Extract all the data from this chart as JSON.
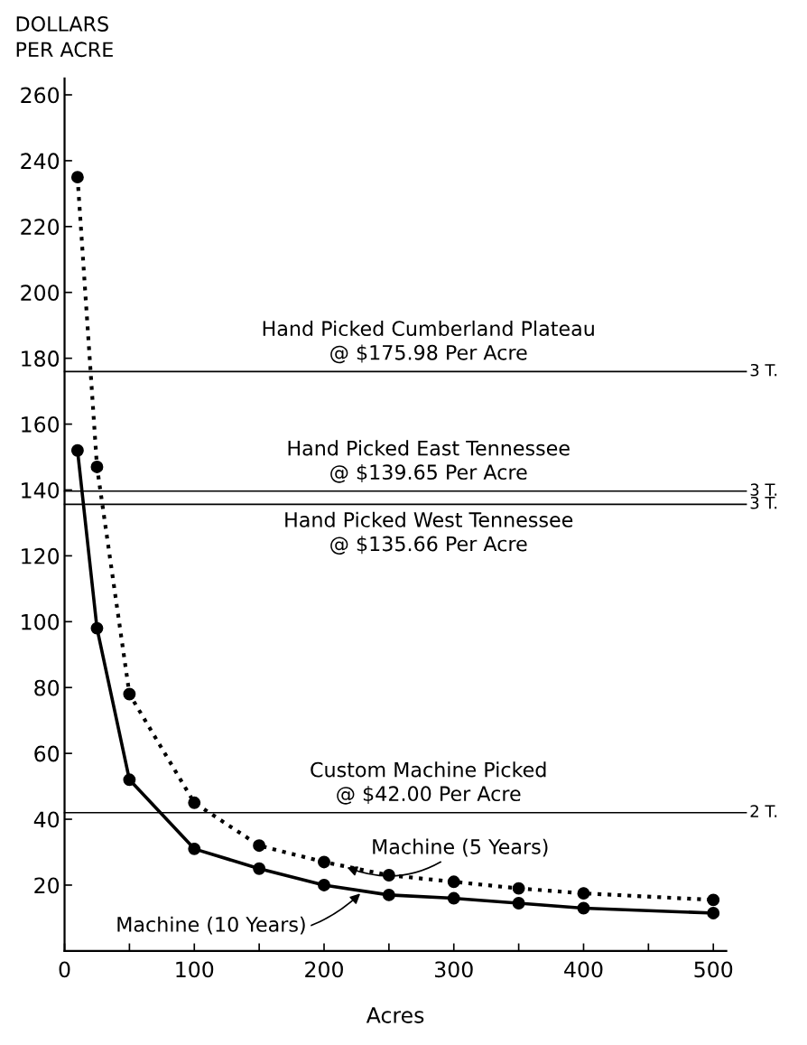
{
  "chart_data": {
    "type": "line",
    "xlabel": "Acres",
    "ylabel": "DOLLARS\nPER ACRE",
    "xlim": [
      0,
      510
    ],
    "ylim": [
      0,
      265
    ],
    "xticks": [
      0,
      {
        "value": 50,
        "label": null
      },
      100,
      {
        "value": 150,
        "label": null
      },
      200,
      {
        "value": 250,
        "label": null
      },
      300,
      {
        "value": 350,
        "label": null
      },
      400,
      {
        "value": 450,
        "label": null
      },
      500
    ],
    "yticks": [
      20,
      40,
      60,
      80,
      100,
      120,
      140,
      160,
      180,
      200,
      220,
      240,
      260
    ],
    "grid": false,
    "legend": false,
    "marker": "circle",
    "series": [
      {
        "name": "Machine (5 Years)",
        "color": "#000000",
        "line_style": "dotted",
        "x": [
          10,
          25,
          50,
          100,
          150,
          200,
          250,
          300,
          350,
          400,
          500
        ],
        "values": [
          235,
          147,
          78,
          45,
          32,
          27,
          23,
          21,
          19,
          17.5,
          15.5
        ]
      },
      {
        "name": "Machine (10 Years)",
        "color": "#000000",
        "line_style": "solid",
        "x": [
          10,
          25,
          50,
          100,
          150,
          200,
          250,
          300,
          350,
          400,
          500
        ],
        "values": [
          152,
          98,
          52,
          31,
          25,
          20,
          17,
          16,
          14.5,
          13,
          11.5
        ]
      }
    ],
    "ref_lines": [
      {
        "axis": "y",
        "value": 175.98,
        "label": "3 T.",
        "color": "#000000"
      },
      {
        "axis": "y",
        "value": 139.65,
        "label": "3 T.",
        "color": "#000000"
      },
      {
        "axis": "y",
        "value": 135.66,
        "label": "3 T.",
        "color": "#000000"
      },
      {
        "axis": "y",
        "value": 42.0,
        "label": "2 T.",
        "color": "#000000"
      }
    ],
    "annotations": [
      {
        "text": "Hand Picked Cumberland Plateau\n@ $175.98 Per Acre",
        "y": 175.98
      },
      {
        "text": "Hand Picked East Tennessee\n@ $139.65 Per Acre",
        "y": 139.65
      },
      {
        "text": "Hand Picked West Tennessee\n@ $135.66 Per Acre",
        "y": 135.66
      },
      {
        "text": "Custom Machine Picked\n@ $42.00 Per Acre",
        "y": 42.0
      }
    ]
  }
}
